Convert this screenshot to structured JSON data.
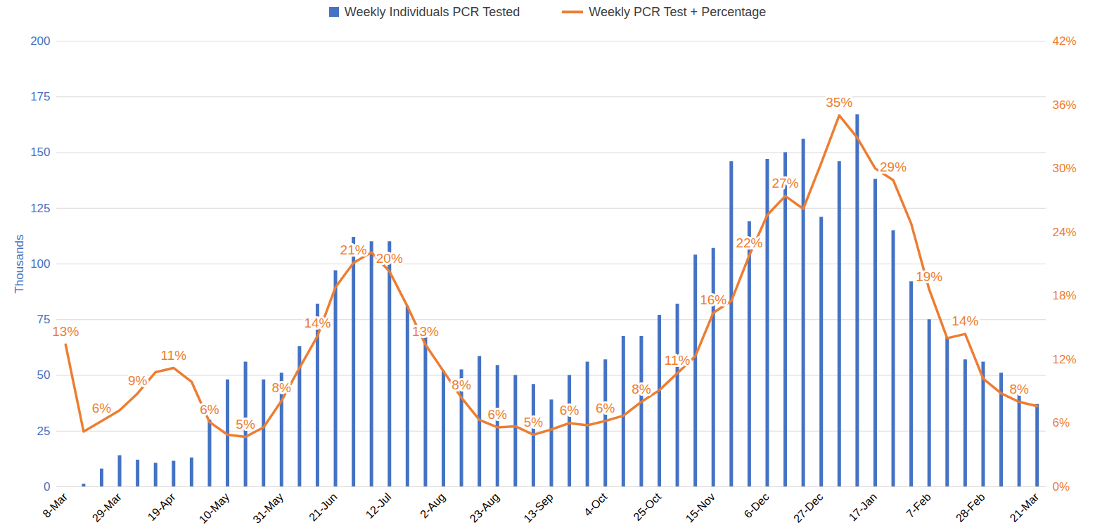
{
  "chart_data": {
    "type": "bar_line",
    "categories": [
      "8-Mar",
      null,
      null,
      "29-Mar",
      null,
      null,
      "19-Apr",
      null,
      null,
      "10-May",
      null,
      null,
      "31-May",
      null,
      null,
      "21-Jun",
      null,
      null,
      "12-Jul",
      null,
      null,
      "2-Aug",
      null,
      null,
      "23-Aug",
      null,
      null,
      "13-Sep",
      null,
      null,
      "4-Oct",
      null,
      null,
      "25-Oct",
      null,
      null,
      "15-Nov",
      null,
      null,
      "6-Dec",
      null,
      null,
      "27-Dec",
      null,
      null,
      "17-Jan",
      null,
      null,
      "7-Feb",
      null,
      null,
      "28-Feb",
      null,
      null,
      "21-Mar"
    ],
    "series": [
      {
        "name": "Weekly Individuals PCR Tested",
        "type": "bar",
        "color": "#4472c4",
        "values": [
          null,
          1.2,
          8,
          14,
          12,
          10.6,
          11.5,
          13,
          30,
          48,
          56,
          48,
          51,
          63,
          82,
          97,
          112,
          110,
          110,
          81,
          70,
          52,
          52.5,
          58.5,
          54.5,
          50,
          46,
          39,
          50,
          56,
          57,
          67.5,
          67.5,
          77,
          82,
          104,
          107,
          146,
          119,
          147,
          150,
          156,
          121,
          146,
          167,
          138,
          115,
          92,
          75,
          67,
          57,
          56,
          51,
          44,
          37
        ]
      },
      {
        "name": "Weekly PCR Test + Percentage",
        "type": "line",
        "color": "#ed7d31",
        "axis": "y2",
        "values": [
          13.4,
          5.2,
          6.2,
          7.2,
          8.8,
          10.8,
          11.2,
          9.9,
          6.1,
          4.9,
          4.7,
          5.6,
          8.1,
          11.2,
          14.2,
          18.8,
          21.1,
          22.1,
          20.3,
          17,
          13.4,
          10.9,
          8.4,
          6.3,
          5.6,
          5.7,
          4.9,
          5.4,
          6.0,
          5.8,
          6.2,
          6.7,
          8.0,
          9.1,
          10.7,
          12.3,
          16.4,
          17.5,
          21.8,
          25.6,
          27.4,
          26.2,
          30.5,
          35,
          32.9,
          30,
          28.9,
          24.8,
          18.6,
          14.0,
          14.4,
          10.2,
          8.8,
          8.0,
          7.6
        ],
        "value_labels": [
          "13%",
          null,
          "6%",
          null,
          "9%",
          null,
          "11%",
          null,
          "6%",
          null,
          "5%",
          null,
          "8%",
          null,
          "14%",
          null,
          "21%",
          null,
          "20%",
          null,
          "13%",
          null,
          "8%",
          null,
          "6%",
          null,
          "5%",
          null,
          "6%",
          null,
          "6%",
          null,
          "8%",
          null,
          "11%",
          null,
          "16%",
          null,
          "22%",
          null,
          "27%",
          null,
          null,
          "35%",
          null,
          null,
          "29%",
          null,
          "19%",
          null,
          "14%",
          null,
          null,
          "8%",
          null
        ]
      }
    ],
    "ylabel": "Thousands",
    "ylim": [
      0,
      200
    ],
    "yticks": [
      0,
      25,
      50,
      75,
      100,
      125,
      150,
      175,
      200
    ],
    "y2lim": [
      0,
      42
    ],
    "y2ticks": [
      {
        "value": 0,
        "label": "0%"
      },
      {
        "value": 6,
        "label": "6%"
      },
      {
        "value": 12,
        "label": "12%"
      },
      {
        "value": 18,
        "label": "18%"
      },
      {
        "value": 24,
        "label": "24%"
      },
      {
        "value": 30,
        "label": "30%"
      },
      {
        "value": 36,
        "label": "36%"
      },
      {
        "value": 42,
        "label": "42%"
      }
    ],
    "grid": true,
    "legend": "top",
    "data_labels": true
  }
}
